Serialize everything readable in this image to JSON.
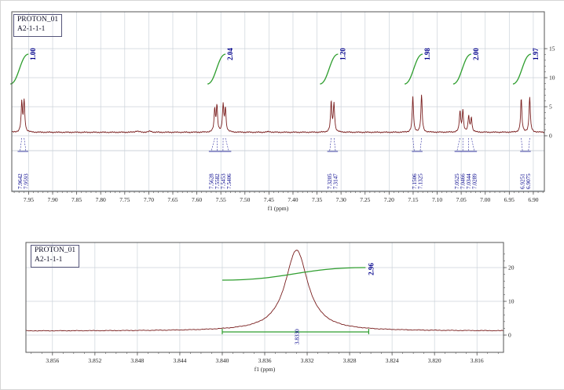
{
  "colors": {
    "spectrum": "#7a1f1f",
    "integral": "#2f9e2f",
    "label": "#00008b",
    "grid": "#ccd3da",
    "frame": "#555555",
    "tick_text": "#1a1a1a"
  },
  "chart_data": [
    {
      "type": "line",
      "title": "PROTON_01",
      "subtitle": "A2-1-1-1",
      "xlabel": "f1 (ppm)",
      "x_range": [
        7.985,
        6.877
      ],
      "x_ticks": [
        "7.95",
        "7.90",
        "7.85",
        "7.80",
        "7.75",
        "7.70",
        "7.65",
        "7.60",
        "7.55",
        "7.50",
        "7.45",
        "7.40",
        "7.35",
        "7.30",
        "7.25",
        "7.20",
        "7.15",
        "7.10",
        "7.05",
        "7.00",
        "6.95",
        "6.90"
      ],
      "y_ticks": [
        0,
        5,
        10,
        15
      ],
      "peak_width": 0.0016,
      "peaks": [
        {
          "ppm": 7.9642,
          "h": 5.0
        },
        {
          "ppm": 7.9593,
          "h": 5.3
        },
        {
          "ppm": 7.5628,
          "h": 3.8
        },
        {
          "ppm": 7.5582,
          "h": 4.4
        },
        {
          "ppm": 7.5453,
          "h": 4.6
        },
        {
          "ppm": 7.5406,
          "h": 4.0
        },
        {
          "ppm": 7.3205,
          "h": 5.1
        },
        {
          "ppm": 7.3147,
          "h": 4.9
        },
        {
          "ppm": 7.1506,
          "h": 6.1
        },
        {
          "ppm": 7.1325,
          "h": 6.3
        },
        {
          "ppm": 7.0525,
          "h": 3.5
        },
        {
          "ppm": 7.0466,
          "h": 3.7
        },
        {
          "ppm": 7.0344,
          "h": 2.7
        },
        {
          "ppm": 7.0289,
          "h": 2.5
        },
        {
          "ppm": 6.9251,
          "h": 5.7
        },
        {
          "ppm": 6.9075,
          "h": 6.0
        }
      ],
      "noise_bumps": [
        {
          "ppm": 7.725,
          "h": 0.22,
          "w": 0.004
        },
        {
          "ppm": 7.697,
          "h": 0.18,
          "w": 0.004
        },
        {
          "ppm": 7.45,
          "h": 0.1,
          "w": 0.005
        }
      ],
      "integrals": [
        {
          "label": "1.00",
          "center": 7.9618
        },
        {
          "label": "2.04",
          "center": 7.5517
        },
        {
          "label": "1.20",
          "center": 7.3176
        },
        {
          "label": "1.98",
          "center": 7.1416
        },
        {
          "label": "2.00",
          "center": 7.0406
        },
        {
          "label": "1.97",
          "center": 6.9163
        }
      ],
      "peak_label_groups": [
        {
          "labels": [
            "7.9642",
            "7.9593"
          ]
        },
        {
          "labels": [
            "7.5628",
            "7.5582",
            "7.5453",
            "7.5406"
          ]
        },
        {
          "labels": [
            "7.3205",
            "7.3147"
          ]
        },
        {
          "labels": [
            "7.1506",
            "7.1325"
          ]
        },
        {
          "labels": [
            "7.0525",
            "7.0466",
            "7.0344",
            "7.0289"
          ]
        },
        {
          "labels": [
            "6.9251",
            "6.9075"
          ]
        }
      ]
    },
    {
      "type": "line",
      "title": "PROTON_01",
      "subtitle": "A2-1-1-1",
      "xlabel": "f1 (ppm)",
      "x_range": [
        3.8585,
        3.8135
      ],
      "x_ticks": [
        "3.856",
        "3.852",
        "3.848",
        "3.844",
        "3.840",
        "3.836",
        "3.832",
        "3.828",
        "3.824",
        "3.820",
        "3.816"
      ],
      "y_ticks": [
        0,
        10,
        20
      ],
      "peak_width": 0.0013,
      "peaks": [
        {
          "ppm": 3.833,
          "h": 24
        }
      ],
      "noise_bumps": [],
      "integrals": [
        {
          "label": "2.96",
          "from": 3.84,
          "to": 3.8265
        }
      ],
      "peak_labels": [
        "3.8330"
      ],
      "integral_region": {
        "from": 3.84,
        "to": 3.8262
      }
    }
  ]
}
